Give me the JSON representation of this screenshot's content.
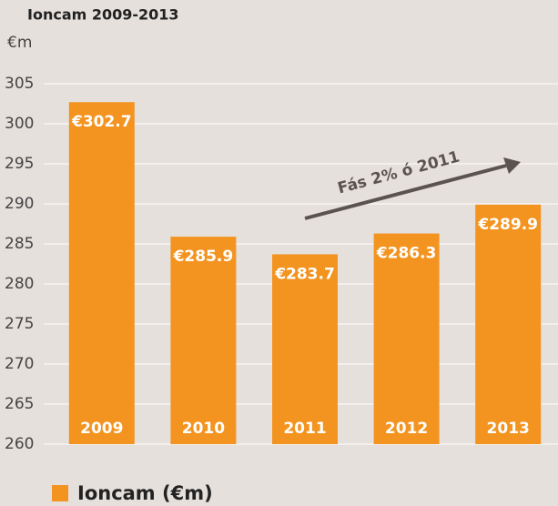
{
  "chart_data": {
    "type": "bar",
    "title": "Ioncam 2009-2013",
    "y_label": "€m",
    "categories": [
      "2009",
      "2010",
      "2011",
      "2012",
      "2013"
    ],
    "series": [
      {
        "name": "Ioncam (€m)",
        "color": "#f39420",
        "values": [
          302.7,
          285.9,
          283.7,
          286.3,
          289.9
        ],
        "value_labels": [
          "€302.7",
          "€285.9",
          "€283.7",
          "€286.3",
          "€289.9"
        ]
      }
    ],
    "ylim": [
      260,
      305
    ],
    "yticks": [
      260,
      265,
      270,
      275,
      280,
      285,
      290,
      295,
      300,
      305
    ],
    "grid": true,
    "annotation": "Fás 2% ó 2011"
  }
}
